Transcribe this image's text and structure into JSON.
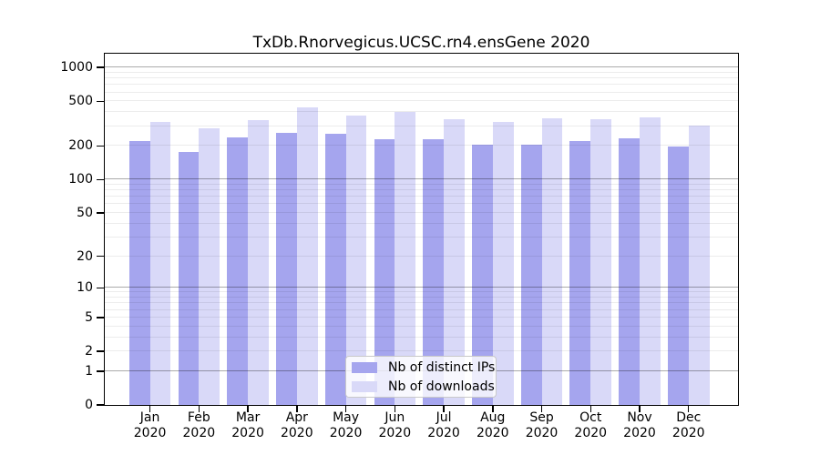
{
  "chart_data": {
    "type": "bar",
    "title": "TxDb.Rnorvegicus.UCSC.rn4.ensGene 2020",
    "categories": [
      "Jan 2020",
      "Feb 2020",
      "Mar 2020",
      "Apr 2020",
      "May 2020",
      "Jun 2020",
      "Jul 2020",
      "Aug 2020",
      "Sep 2020",
      "Oct 2020",
      "Nov 2020",
      "Dec 2020"
    ],
    "months": [
      "Jan",
      "Feb",
      "Mar",
      "Apr",
      "May",
      "Jun",
      "Jul",
      "Aug",
      "Sep",
      "Oct",
      "Nov",
      "Dec"
    ],
    "year": "2020",
    "series": [
      {
        "name": "Nb of distinct IPs",
        "color": "#a5a5ee",
        "values": [
          220,
          178,
          238,
          262,
          257,
          230,
          228,
          204,
          204,
          223,
          232,
          198
        ]
      },
      {
        "name": "Nb of downloads",
        "color": "#d9d9f8",
        "values": [
          325,
          288,
          341,
          443,
          372,
          399,
          345,
          325,
          352,
          345,
          358,
          305
        ]
      }
    ],
    "yscale": "log1p",
    "yticks": [
      0,
      1,
      2,
      5,
      10,
      20,
      50,
      100,
      200,
      500,
      1000
    ],
    "ylim": [
      0,
      1300
    ],
    "grid": {
      "major": [
        1,
        10,
        100,
        1000
      ],
      "minor": "2-9 per decade",
      "grid_on": true,
      "grid_over_bars": true
    },
    "legend": {
      "position": "bottom-center-inside",
      "entries": [
        "Nb of distinct IPs",
        "Nb of downloads"
      ]
    }
  }
}
